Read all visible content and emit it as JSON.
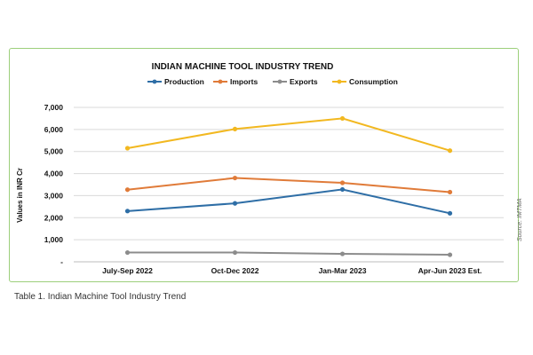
{
  "chart_data": {
    "type": "line",
    "title": "INDIAN MACHINE TOOL INDUSTRY TREND",
    "xlabel": "",
    "ylabel": "Values in INR Cr",
    "categories": [
      "July-Sep 2022",
      "Oct-Dec 2022",
      "Jan-Mar 2023",
      "Apr-Jun 2023 Est."
    ],
    "ylim": [
      0,
      7000
    ],
    "y_ticks": [
      "-",
      "1,000",
      "2,000",
      "3,000",
      "4,000",
      "5,000",
      "6,000",
      "7,000"
    ],
    "grid": true,
    "legend_position": "top",
    "series": [
      {
        "name": "Production",
        "color": "#2e6ea6",
        "values": [
          2300,
          2650,
          3280,
          2200
        ]
      },
      {
        "name": "Imports",
        "color": "#e07b39",
        "values": [
          3270,
          3800,
          3580,
          3160
        ]
      },
      {
        "name": "Exports",
        "color": "#8c8c8c",
        "values": [
          420,
          420,
          360,
          320
        ]
      },
      {
        "name": "Consumption",
        "color": "#f2b820",
        "values": [
          5150,
          6020,
          6500,
          5040
        ]
      }
    ]
  },
  "source": "Source: IMTMA",
  "caption": "Table 1. Indian Machine Tool Industry Trend"
}
